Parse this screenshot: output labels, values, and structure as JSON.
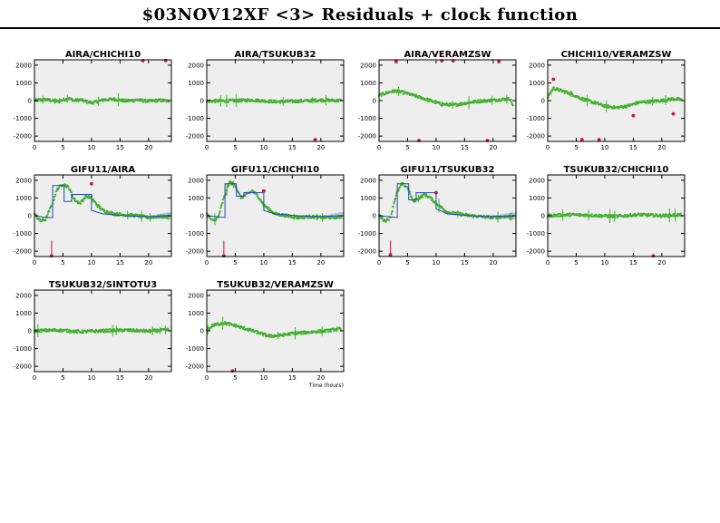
{
  "page": {
    "title": "$03NOV12XF <3> Residuals + clock function"
  },
  "chart_data": {
    "type": "scatter",
    "xlabel": "Time (hours)",
    "xlim": [
      0,
      24
    ],
    "ylim": [
      -2300,
      2300
    ],
    "x_ticks": [
      0,
      5,
      10,
      15,
      20
    ],
    "x_tick_labels": [
      "0",
      "5",
      "10",
      "15",
      "20"
    ],
    "y_ticks": [
      -2000,
      -1000,
      0,
      1000,
      2000
    ],
    "y_tick_labels": [
      "-2000",
      "-1000",
      "0",
      "1000",
      "2000"
    ],
    "colors": {
      "residual": "#44b030",
      "outlier": "#cc1144",
      "clock": "#2244bb",
      "band": "#b8c4e0",
      "panel_bg": "#eeeeee"
    },
    "panels": [
      {
        "name": "AIRA/CHICHI10",
        "residuals": [
          [
            0,
            0
          ],
          [
            2,
            60
          ],
          [
            4,
            -40
          ],
          [
            6,
            120
          ],
          [
            7,
            0
          ],
          [
            8,
            50
          ],
          [
            9,
            -40
          ],
          [
            10,
            -120
          ],
          [
            11,
            -60
          ],
          [
            12,
            40
          ],
          [
            14,
            80
          ],
          [
            16,
            -20
          ],
          [
            18,
            40
          ],
          [
            20,
            -30
          ],
          [
            22,
            20
          ],
          [
            23.5,
            -30
          ]
        ],
        "outliers": [
          [
            19,
            2250
          ],
          [
            23,
            2300
          ]
        ],
        "clock": []
      },
      {
        "name": "AIRA/TSUKUB32",
        "residuals": [
          [
            0,
            -30
          ],
          [
            4,
            -10
          ],
          [
            8,
            30
          ],
          [
            12,
            -60
          ],
          [
            16,
            -30
          ],
          [
            20,
            30
          ],
          [
            23.5,
            0
          ]
        ],
        "outliers": [
          [
            19,
            -2200
          ]
        ],
        "clock": []
      },
      {
        "name": "AIRA/VERAMZSW",
        "residuals": [
          [
            0,
            300
          ],
          [
            2,
            500
          ],
          [
            3,
            550
          ],
          [
            5,
            400
          ],
          [
            7,
            200
          ],
          [
            9,
            0
          ],
          [
            11,
            -200
          ],
          [
            13,
            -250
          ],
          [
            15,
            -150
          ],
          [
            17,
            -50
          ],
          [
            19,
            0
          ],
          [
            21,
            50
          ],
          [
            23,
            100
          ],
          [
            23.5,
            -300
          ]
        ],
        "outliers": [
          [
            3,
            2200
          ],
          [
            7,
            -2250
          ],
          [
            11,
            2250
          ],
          [
            13,
            2250
          ],
          [
            19,
            -2250
          ],
          [
            21,
            2200
          ]
        ],
        "clock": []
      },
      {
        "name": "CHICHI10/VERAMZSW",
        "residuals": [
          [
            0,
            200
          ],
          [
            1,
            700
          ],
          [
            2,
            600
          ],
          [
            4,
            400
          ],
          [
            6,
            100
          ],
          [
            8,
            -100
          ],
          [
            10,
            -300
          ],
          [
            12,
            -400
          ],
          [
            14,
            -300
          ],
          [
            16,
            -100
          ],
          [
            18,
            -50
          ],
          [
            20,
            0
          ],
          [
            22,
            100
          ],
          [
            23.5,
            50
          ]
        ],
        "outliers": [
          [
            1,
            1200
          ],
          [
            15,
            -850
          ],
          [
            22,
            -750
          ],
          [
            6,
            -2200
          ],
          [
            9,
            -2200
          ]
        ],
        "clock": []
      },
      {
        "name": "GIFU11/AIRA",
        "residuals": [
          [
            0,
            100
          ],
          [
            1,
            -300
          ],
          [
            2,
            -200
          ],
          [
            3,
            600
          ],
          [
            4,
            1500
          ],
          [
            5,
            1800
          ],
          [
            6,
            1600
          ],
          [
            7,
            900
          ],
          [
            8,
            700
          ],
          [
            9,
            1100
          ],
          [
            10,
            1000
          ],
          [
            11,
            600
          ],
          [
            12,
            300
          ],
          [
            14,
            100
          ],
          [
            16,
            50
          ],
          [
            18,
            0
          ],
          [
            20,
            -100
          ],
          [
            22,
            -50
          ],
          [
            23.5,
            -50
          ]
        ],
        "outliers": [
          [
            3,
            -2300
          ],
          [
            10,
            1800
          ]
        ],
        "clock": [
          [
            0,
            0
          ],
          [
            2,
            -100
          ],
          [
            3.2,
            -100
          ],
          [
            3.2,
            1700
          ],
          [
            5.2,
            1700
          ],
          [
            5.2,
            800
          ],
          [
            6.5,
            800
          ],
          [
            6.5,
            1200
          ],
          [
            10,
            1200
          ],
          [
            10,
            300
          ],
          [
            12,
            100
          ],
          [
            16,
            0
          ],
          [
            20,
            -50
          ],
          [
            23.5,
            0
          ]
        ]
      },
      {
        "name": "GIFU11/CHICHI10",
        "residuals": [
          [
            0,
            100
          ],
          [
            1,
            -300
          ],
          [
            2,
            -100
          ],
          [
            3,
            1000
          ],
          [
            4,
            1900
          ],
          [
            5,
            1700
          ],
          [
            6,
            1000
          ],
          [
            7,
            1200
          ],
          [
            8,
            1400
          ],
          [
            9,
            1100
          ],
          [
            10,
            600
          ],
          [
            12,
            100
          ],
          [
            14,
            0
          ],
          [
            16,
            -100
          ],
          [
            18,
            -50
          ],
          [
            20,
            -100
          ],
          [
            22,
            -100
          ],
          [
            23.5,
            -50
          ]
        ],
        "outliers": [
          [
            3,
            -2300
          ],
          [
            10,
            1400
          ]
        ],
        "clock": [
          [
            0,
            0
          ],
          [
            3.2,
            -100
          ],
          [
            3.2,
            1800
          ],
          [
            5.2,
            1800
          ],
          [
            5.2,
            1100
          ],
          [
            6.5,
            1100
          ],
          [
            6.5,
            1300
          ],
          [
            10,
            1300
          ],
          [
            10,
            300
          ],
          [
            12,
            100
          ],
          [
            16,
            0
          ],
          [
            20,
            -50
          ],
          [
            23.5,
            0
          ]
        ]
      },
      {
        "name": "GIFU11/TSUKUB32",
        "residuals": [
          [
            0,
            0
          ],
          [
            1,
            -300
          ],
          [
            2,
            -100
          ],
          [
            3,
            1200
          ],
          [
            4,
            1800
          ],
          [
            5,
            1600
          ],
          [
            6,
            800
          ],
          [
            7,
            1000
          ],
          [
            8,
            1200
          ],
          [
            9,
            1000
          ],
          [
            10,
            700
          ],
          [
            12,
            200
          ],
          [
            14,
            100
          ],
          [
            16,
            0
          ],
          [
            18,
            -50
          ],
          [
            20,
            -100
          ],
          [
            22,
            -50
          ],
          [
            23.5,
            -50
          ]
        ],
        "outliers": [
          [
            10,
            1300
          ],
          [
            2,
            -2200
          ]
        ],
        "clock": [
          [
            0,
            0
          ],
          [
            3.2,
            -100
          ],
          [
            3.2,
            1800
          ],
          [
            5.2,
            1800
          ],
          [
            5.2,
            900
          ],
          [
            6.5,
            900
          ],
          [
            6.5,
            1300
          ],
          [
            10,
            1300
          ],
          [
            10,
            400
          ],
          [
            12,
            100
          ],
          [
            16,
            0
          ],
          [
            20,
            -50
          ],
          [
            23.5,
            0
          ]
        ]
      },
      {
        "name": "TSUKUB32/CHICHI10",
        "residuals": [
          [
            0,
            0
          ],
          [
            4,
            60
          ],
          [
            8,
            20
          ],
          [
            12,
            -40
          ],
          [
            16,
            60
          ],
          [
            20,
            0
          ],
          [
            23.5,
            50
          ]
        ],
        "outliers": [
          [
            18.5,
            -2300
          ]
        ],
        "clock": []
      },
      {
        "name": "TSUKUB32/SINTOTU3",
        "residuals": [
          [
            0,
            0
          ],
          [
            4,
            40
          ],
          [
            8,
            -50
          ],
          [
            12,
            0
          ],
          [
            16,
            40
          ],
          [
            20,
            -20
          ],
          [
            23.5,
            60
          ]
        ],
        "outliers": [],
        "clock": []
      },
      {
        "name": "TSUKUB32/VERAMZSW",
        "residuals": [
          [
            0,
            0
          ],
          [
            1,
            300
          ],
          [
            3,
            450
          ],
          [
            5,
            300
          ],
          [
            7,
            100
          ],
          [
            9,
            -100
          ],
          [
            11,
            -300
          ],
          [
            13,
            -250
          ],
          [
            15,
            -150
          ],
          [
            17,
            -100
          ],
          [
            19,
            -50
          ],
          [
            21,
            0
          ],
          [
            23,
            100
          ],
          [
            23.5,
            100
          ]
        ],
        "outliers": [
          [
            4.5,
            -2300
          ]
        ],
        "clock": []
      }
    ]
  }
}
